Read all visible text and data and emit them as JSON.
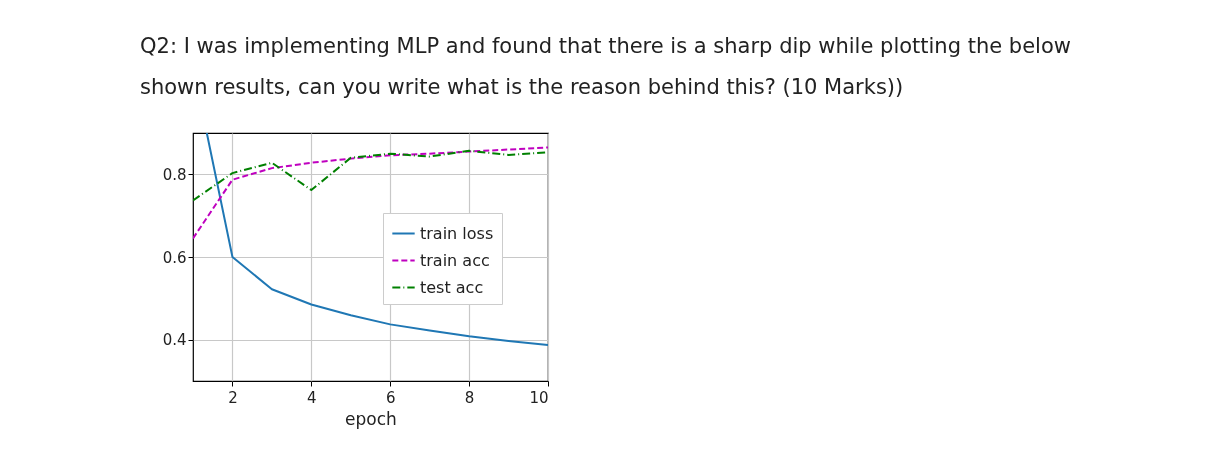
{
  "chart_data": {
    "type": "line",
    "title": "Q2:  I was implementing MLP and found that there is a sharp dip while plotting the below shown results, can you write what is the reason behind this? (10 Marks))",
    "xlabel": "epoch",
    "x": [
      1,
      2,
      3,
      4,
      5,
      6,
      7,
      8,
      9,
      10
    ],
    "series": [
      {
        "name": "train loss",
        "color": "#1f77b4",
        "line_style": "solid",
        "x": [
          1.35,
          2,
          3,
          4,
          5,
          6,
          7,
          8,
          9,
          10
        ],
        "values": [
          0.9,
          0.6,
          0.522,
          0.485,
          0.459,
          0.437,
          0.422,
          0.408,
          0.397,
          0.387
        ]
      },
      {
        "name": "train acc",
        "color": "#bf00bf",
        "line_style": "dashed",
        "values": [
          0.645,
          0.787,
          0.815,
          0.828,
          0.838,
          0.846,
          0.85,
          0.855,
          0.86,
          0.865
        ]
      },
      {
        "name": "test acc",
        "color": "#008000",
        "line_style": "dashdot",
        "values": [
          0.737,
          0.803,
          0.828,
          0.762,
          0.84,
          0.85,
          0.843,
          0.857,
          0.847,
          0.853
        ]
      }
    ],
    "xlim": [
      1,
      10
    ],
    "xticks": [
      2,
      4,
      6,
      8,
      10
    ],
    "ylim": [
      0.3,
      0.9
    ],
    "yticks": [
      0.4,
      0.6,
      0.8
    ],
    "grid": true,
    "legend": "right"
  }
}
